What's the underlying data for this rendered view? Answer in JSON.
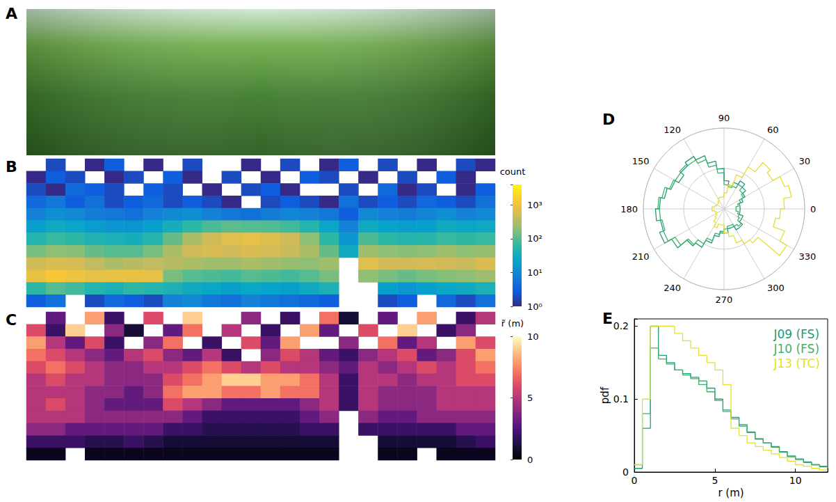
{
  "chart_data": [
    {
      "type": "image",
      "panel": "A"
    },
    {
      "type": "heatmap",
      "panel": "B",
      "tick_labels": false,
      "cells": [
        [
          null,
          2,
          null,
          1,
          3,
          null,
          1,
          null,
          2,
          null,
          null,
          1,
          null,
          2,
          null,
          1,
          3,
          null,
          2,
          null,
          1,
          null,
          2,
          1
        ],
        [
          1,
          3,
          2,
          null,
          1,
          2,
          null,
          3,
          1,
          null,
          2,
          null,
          1,
          null,
          3,
          2,
          null,
          1,
          null,
          2,
          null,
          3,
          1,
          null
        ],
        [
          2,
          1,
          4,
          3,
          2,
          null,
          3,
          2,
          null,
          1,
          null,
          2,
          3,
          1,
          null,
          null,
          2,
          null,
          4,
          1,
          2,
          null,
          1,
          3
        ],
        [
          4,
          6,
          3,
          5,
          2,
          3,
          4,
          2,
          3,
          2,
          1,
          null,
          2,
          3,
          2,
          1,
          5,
          2,
          3,
          2,
          4,
          3,
          2,
          5
        ],
        [
          8,
          12,
          10,
          7,
          6,
          5,
          8,
          10,
          12,
          8,
          6,
          5,
          7,
          9,
          8,
          6,
          3,
          10,
          8,
          7,
          9,
          12,
          8,
          10
        ],
        [
          20,
          30,
          25,
          18,
          15,
          14,
          20,
          35,
          60,
          90,
          110,
          100,
          95,
          80,
          50,
          25,
          8,
          30,
          22,
          18,
          20,
          30,
          25,
          28
        ],
        [
          50,
          70,
          60,
          45,
          40,
          35,
          50,
          120,
          300,
          500,
          700,
          800,
          650,
          500,
          200,
          60,
          15,
          90,
          60,
          50,
          55,
          70,
          65,
          70
        ],
        [
          150,
          200,
          180,
          120,
          100,
          100,
          150,
          300,
          500,
          600,
          500,
          600,
          550,
          450,
          300,
          120,
          30,
          250,
          200,
          180,
          200,
          250,
          200,
          220
        ],
        [
          500,
          600,
          550,
          400,
          300,
          350,
          400,
          350,
          300,
          250,
          250,
          300,
          250,
          220,
          200,
          250,
          null,
          700,
          500,
          500,
          550,
          500,
          450,
          600
        ],
        [
          900,
          1200,
          1000,
          800,
          900,
          900,
          800,
          150,
          100,
          90,
          80,
          100,
          90,
          80,
          100,
          150,
          null,
          200,
          150,
          120,
          150,
          180,
          200,
          250
        ],
        [
          60,
          100,
          80,
          50,
          40,
          60,
          50,
          40,
          30,
          25,
          20,
          25,
          22,
          20,
          30,
          40,
          null,
          null,
          20,
          15,
          20,
          25,
          30,
          40
        ],
        [
          3,
          5,
          null,
          2,
          4,
          3,
          2,
          8,
          10,
          6,
          5,
          8,
          6,
          5,
          4,
          3,
          null,
          null,
          2,
          3,
          null,
          4,
          2,
          5
        ]
      ],
      "colorbar": {
        "title": "count",
        "log": true,
        "range": [
          1,
          4000
        ],
        "ticks": [
          {
            "value": 1,
            "label": "10⁰"
          },
          {
            "value": 10,
            "label": "10¹"
          },
          {
            "value": 100,
            "label": "10²"
          },
          {
            "value": 1000,
            "label": "10³"
          }
        ]
      }
    },
    {
      "type": "heatmap",
      "panel": "C",
      "tick_labels": false,
      "cells": [
        [
          null,
          3,
          null,
          8,
          2,
          null,
          6,
          null,
          9,
          null,
          null,
          4,
          null,
          2,
          null,
          7,
          1,
          null,
          3,
          null,
          8,
          null,
          2,
          5
        ],
        [
          6,
          2,
          9,
          null,
          4,
          1,
          null,
          3,
          7,
          null,
          5,
          null,
          2,
          null,
          8,
          3,
          null,
          6,
          null,
          9,
          null,
          2,
          4,
          null
        ],
        [
          8,
          5,
          3,
          6,
          2,
          null,
          4,
          7,
          null,
          2,
          null,
          6,
          3,
          8,
          null,
          null,
          4,
          null,
          7,
          3,
          5,
          null,
          8,
          6
        ],
        [
          7,
          6,
          5,
          4,
          3,
          5,
          6,
          4,
          3,
          5,
          2,
          null,
          4,
          6,
          5,
          3,
          2,
          4,
          5,
          6,
          3,
          4,
          6,
          8
        ],
        [
          6,
          7,
          6,
          5,
          4,
          4,
          5,
          5,
          6,
          7,
          6,
          5,
          6,
          5,
          5,
          4,
          3,
          5,
          4,
          5,
          6,
          5,
          6,
          7
        ],
        [
          5,
          6,
          5,
          5,
          4,
          4,
          4,
          6,
          7,
          8,
          9,
          9,
          8,
          8,
          7,
          5,
          2,
          5,
          5,
          4,
          5,
          5,
          6,
          6
        ],
        [
          5,
          5,
          5,
          4,
          4,
          3,
          4,
          7,
          8,
          8,
          7,
          7,
          8,
          7,
          7,
          5,
          2,
          5,
          4,
          4,
          4,
          5,
          5,
          5
        ],
        [
          5,
          6,
          5,
          4,
          3,
          3,
          3,
          6,
          5,
          4,
          3,
          3,
          3,
          3,
          4,
          5,
          2,
          5,
          4,
          4,
          4,
          5,
          5,
          5
        ],
        [
          5,
          5,
          5,
          4,
          4,
          4,
          4,
          4,
          3,
          2,
          2,
          2,
          2,
          2,
          3,
          4,
          null,
          4,
          3,
          3,
          4,
          4,
          4,
          4
        ],
        [
          4,
          4,
          3,
          3,
          3,
          3,
          3,
          2,
          2,
          1.5,
          1.5,
          1.5,
          1.5,
          1.5,
          2,
          2,
          null,
          2,
          2,
          2,
          2,
          2,
          3,
          3
        ],
        [
          2,
          2,
          2,
          1.5,
          1.5,
          2,
          1.5,
          1,
          1,
          1,
          1,
          1,
          1,
          1,
          1,
          1,
          null,
          null,
          1,
          1,
          1,
          1,
          1.5,
          2
        ],
        [
          0.5,
          0.5,
          null,
          0.5,
          0.5,
          0.5,
          0.5,
          0.5,
          0.5,
          0.5,
          0.5,
          0.5,
          0.5,
          0.5,
          0.5,
          0.5,
          null,
          null,
          0.5,
          0.5,
          null,
          0.5,
          0.5,
          0.5
        ]
      ],
      "colorbar": {
        "title": "r̃ (m)",
        "log": false,
        "range": [
          0,
          10
        ],
        "ticks": [
          0,
          5,
          10
        ]
      }
    },
    {
      "type": "polar_histogram",
      "panel": "D",
      "tick_labels": "x",
      "grid": true,
      "bins": [
        0,
        10,
        20,
        30,
        40,
        50,
        60,
        70,
        80,
        90,
        100,
        110,
        120,
        130,
        140,
        150,
        160,
        170,
        180,
        190,
        200,
        210,
        220,
        230,
        240,
        250,
        260,
        270,
        280,
        290,
        300,
        310,
        320,
        330,
        340,
        350,
        360
      ],
      "xlim": [
        0,
        360
      ],
      "xticks": [
        0,
        30,
        60,
        90,
        120,
        150,
        180,
        210,
        240,
        270,
        300,
        330
      ],
      "ylim": [
        0,
        1
      ],
      "yticks": [
        0,
        0.5,
        1
      ],
      "series": [
        {
          "name": "J09 (FS)",
          "color": "#1f9a78",
          "values": [
            0.2,
            0.2,
            0.25,
            0.3,
            0.35,
            0.4,
            0.35,
            0.3,
            0.35,
            0.5,
            0.6,
            0.7,
            0.75,
            0.7,
            0.65,
            0.7,
            0.75,
            0.8,
            0.85,
            0.8,
            0.85,
            0.75,
            0.6,
            0.55,
            0.45,
            0.35,
            0.3,
            0.3,
            0.25,
            0.25,
            0.3,
            0.3,
            0.25,
            0.25,
            0.2,
            0.2
          ]
        },
        {
          "name": "J10 (FS)",
          "color": "#3fb06a",
          "values": [
            0.15,
            0.18,
            0.22,
            0.28,
            0.3,
            0.35,
            0.3,
            0.28,
            0.3,
            0.45,
            0.55,
            0.65,
            0.7,
            0.72,
            0.7,
            0.72,
            0.78,
            0.82,
            0.8,
            0.78,
            0.8,
            0.7,
            0.58,
            0.5,
            0.42,
            0.32,
            0.28,
            0.25,
            0.22,
            0.22,
            0.25,
            0.28,
            0.22,
            0.2,
            0.18,
            0.15
          ]
        },
        {
          "name": "J13 (TC)",
          "color": "#e3df2c",
          "values": [
            0.75,
            0.85,
            0.8,
            0.7,
            0.75,
            0.6,
            0.45,
            0.3,
            0.2,
            0.15,
            0.15,
            0.15,
            0.12,
            0.1,
            0.1,
            0.1,
            0.12,
            0.15,
            0.15,
            0.12,
            0.1,
            0.12,
            0.15,
            0.2,
            0.25,
            0.2,
            0.2,
            0.3,
            0.35,
            0.45,
            0.5,
            0.55,
            0.9,
            0.8,
            0.65,
            0.7
          ]
        }
      ]
    },
    {
      "type": "histogram",
      "panel": "E",
      "x_label": "r (m)",
      "y_label": "pdf",
      "legend": "top-right",
      "bins": [
        0,
        0.5,
        1,
        1.5,
        2,
        2.5,
        3,
        3.5,
        4,
        4.5,
        5,
        5.5,
        6,
        6.5,
        7,
        7.5,
        8,
        8.5,
        9,
        9.5,
        10,
        10.5,
        11,
        11.5,
        12
      ],
      "xlim": [
        0,
        12
      ],
      "xticks": [
        0,
        5,
        10
      ],
      "ylim": [
        0,
        0.21
      ],
      "yticks": [
        0,
        0.1,
        0.2
      ],
      "series": [
        {
          "name": "J09 (FS)",
          "color": "#1f9a78",
          "values": [
            0.005,
            0.06,
            0.2,
            0.16,
            0.15,
            0.14,
            0.135,
            0.13,
            0.125,
            0.115,
            0.1,
            0.085,
            0.075,
            0.065,
            0.055,
            0.045,
            0.04,
            0.035,
            0.028,
            0.022,
            0.018,
            0.014,
            0.01,
            0.008
          ]
        },
        {
          "name": "J10 (FS)",
          "color": "#3fb06a",
          "values": [
            0.01,
            0.08,
            0.17,
            0.155,
            0.148,
            0.14,
            0.133,
            0.128,
            0.12,
            0.11,
            0.098,
            0.083,
            0.073,
            0.063,
            0.054,
            0.046,
            0.04,
            0.034,
            0.027,
            0.021,
            0.017,
            0.013,
            0.01,
            0.007
          ]
        },
        {
          "name": "J13 (TC)",
          "color": "#e3df2c",
          "values": [
            0.01,
            0.1,
            0.2,
            0.2,
            0.2,
            0.19,
            0.18,
            0.17,
            0.16,
            0.15,
            0.14,
            0.12,
            0.06,
            0.05,
            0.04,
            0.035,
            0.03,
            0.025,
            0.02,
            0.015,
            0.01,
            0.008,
            0.005,
            0.003
          ]
        }
      ]
    }
  ]
}
